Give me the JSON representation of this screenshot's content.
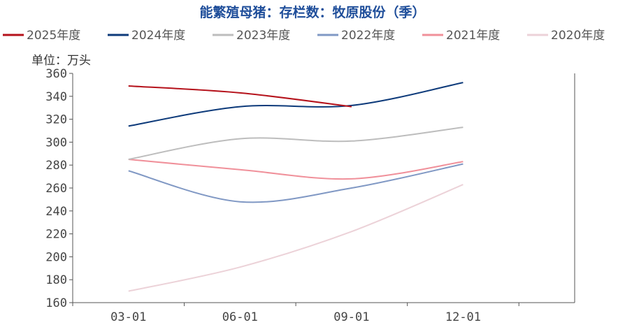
{
  "chart_data": {
    "type": "line",
    "title": "能繁殖母猪：存栏数：牧原股份（季）",
    "unit_label": "单位：万头",
    "categories": [
      "03-01",
      "06-01",
      "09-01",
      "12-01"
    ],
    "ylim": [
      160,
      360
    ],
    "yticks": [
      160,
      180,
      200,
      220,
      240,
      260,
      280,
      300,
      320,
      340,
      360
    ],
    "legend_position": "top",
    "grid": false,
    "series": [
      {
        "name": "2025年度",
        "color": "#b5121b",
        "values": [
          349,
          343,
          331,
          null
        ]
      },
      {
        "name": "2024年度",
        "color": "#0d3a7a",
        "values": [
          314,
          331,
          332,
          352
        ]
      },
      {
        "name": "2023年度",
        "color": "#bdbdbd",
        "values": [
          285,
          303,
          301,
          313
        ]
      },
      {
        "name": "2022年度",
        "color": "#8098c4",
        "values": [
          275,
          248,
          260,
          281
        ]
      },
      {
        "name": "2021年度",
        "color": "#f0909a",
        "values": [
          285,
          276,
          268,
          283
        ]
      },
      {
        "name": "2020年度",
        "color": "#ecd2d8",
        "values": [
          170,
          191,
          222,
          263
        ]
      }
    ]
  }
}
